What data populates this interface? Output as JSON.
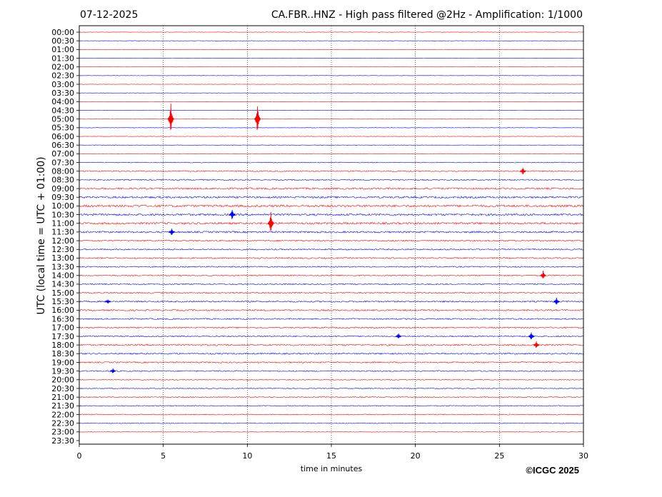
{
  "chart_data": {
    "type": "line",
    "date": "07-12-2025",
    "title": "CA.FBR..HNZ - High pass filtered @2Hz - Amplification: 1/1000",
    "xlabel": "time in minutes",
    "ylabel": "UTC (local time = UTC + 01:00)",
    "copyright": "©ICGC 2025",
    "xlim": [
      0,
      30
    ],
    "x_ticks": [
      "0",
      "5",
      "10",
      "15",
      "20",
      "25",
      "30"
    ],
    "x_tick_values": [
      0,
      5,
      10,
      15,
      20,
      25,
      30
    ],
    "grid": "vertical dotted lines every 5 minutes",
    "row_labels": [
      "00:00",
      "00:30",
      "01:00",
      "01:30",
      "02:00",
      "02:30",
      "03:00",
      "03:30",
      "04:00",
      "04:30",
      "05:00",
      "05:30",
      "06:00",
      "06:30",
      "07:00",
      "07:30",
      "08:00",
      "08:30",
      "09:00",
      "09:30",
      "10:00",
      "10:30",
      "11:00",
      "11:30",
      "12:00",
      "12:30",
      "13:00",
      "13:30",
      "14:00",
      "14:30",
      "15:00",
      "15:30",
      "16:00",
      "16:30",
      "17:00",
      "17:30",
      "18:00",
      "18:30",
      "19:00",
      "19:30",
      "20:00",
      "20:30",
      "21:00",
      "21:30",
      "22:00",
      "22:30",
      "23:00",
      "23:30"
    ],
    "trace_colors": [
      "#ff0000",
      "#0000ff"
    ],
    "traces_shown_through": "23:00",
    "noise_level": [
      0.25,
      0.25,
      0.2,
      0.2,
      0.2,
      0.2,
      0.2,
      0.2,
      0.2,
      0.2,
      0.2,
      0.2,
      0.25,
      0.25,
      0.3,
      0.5,
      0.8,
      0.8,
      1.2,
      1.3,
      1.5,
      1.4,
      1.4,
      1.2,
      1.0,
      0.9,
      0.9,
      0.8,
      0.8,
      0.8,
      0.9,
      1.0,
      1.0,
      0.9,
      0.9,
      0.9,
      1.1,
      1.0,
      0.9,
      0.8,
      0.6,
      0.6,
      0.7,
      0.6,
      0.6,
      0.5,
      0.35,
      0
    ],
    "events": [
      {
        "row": "05:00",
        "minute": 5.45,
        "amplitude": 22
      },
      {
        "row": "05:00",
        "minute": 10.6,
        "amplitude": 22
      },
      {
        "row": "08:00",
        "minute": 26.4,
        "amplitude": 6
      },
      {
        "row": "10:30",
        "minute": 9.1,
        "amplitude": 9
      },
      {
        "row": "11:00",
        "minute": 11.4,
        "amplitude": 18
      },
      {
        "row": "11:30",
        "minute": 5.5,
        "amplitude": 7
      },
      {
        "row": "15:30",
        "minute": 1.7,
        "amplitude": 4
      },
      {
        "row": "15:30",
        "minute": 28.4,
        "amplitude": 6
      },
      {
        "row": "17:30",
        "minute": 19.0,
        "amplitude": 5
      },
      {
        "row": "17:30",
        "minute": 26.9,
        "amplitude": 7
      },
      {
        "row": "18:00",
        "minute": 27.2,
        "amplitude": 6
      },
      {
        "row": "14:00",
        "minute": 27.6,
        "amplitude": 7
      },
      {
        "row": "19:30",
        "minute": 2.0,
        "amplitude": 4
      }
    ]
  }
}
